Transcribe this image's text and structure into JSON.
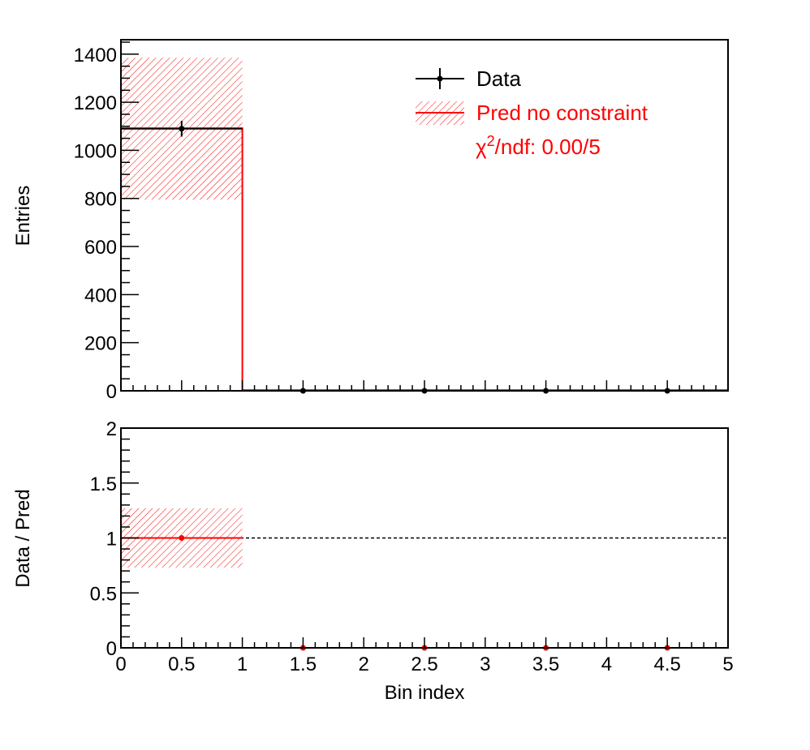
{
  "chart_data": [
    {
      "type": "bar",
      "panel": "top",
      "ylabel": "Entries",
      "xlim": [
        0,
        5
      ],
      "ylim": [
        0,
        1460
      ],
      "yticks": [
        0,
        200,
        400,
        600,
        800,
        1000,
        1200,
        1400
      ],
      "bin_edges": [
        0,
        1,
        2,
        3,
        4,
        5
      ],
      "series": [
        {
          "name": "Data",
          "style": "points-with-errors",
          "x": [
            0.5,
            1.5,
            2.5,
            3.5,
            4.5
          ],
          "values": [
            1090,
            0,
            0,
            0,
            0
          ],
          "errors": [
            33,
            0,
            0,
            0,
            0
          ],
          "color": "#000000"
        },
        {
          "name": "Pred no constraint",
          "style": "histogram-with-hatched-band",
          "values": [
            1092,
            3,
            3,
            3,
            3
          ],
          "band_low": [
            795,
            0,
            0,
            0,
            0
          ],
          "band_high": [
            1385,
            0,
            0,
            0,
            0
          ],
          "color": "#ff0000"
        }
      ],
      "legend": {
        "placement": "top-right",
        "entries": [
          "Data",
          "Pred no constraint"
        ],
        "chi2_prefix": "χ",
        "chi2_sup": "2",
        "chi2_text": "/ndf: 0.00/5"
      }
    },
    {
      "type": "scatter",
      "panel": "bottom",
      "xlabel": "Bin index",
      "ylabel": "Data / Pred",
      "xlim": [
        0,
        5
      ],
      "ylim": [
        0,
        2
      ],
      "xticks": [
        "0",
        "0.5",
        "1",
        "1.5",
        "2",
        "2.5",
        "3",
        "3.5",
        "4",
        "4.5",
        "5"
      ],
      "yticks": [
        "0",
        "0.5",
        "1",
        "1.5",
        "2"
      ],
      "x": [
        0.5,
        1.5,
        2.5,
        3.5,
        4.5
      ],
      "ratio": [
        1.0,
        0,
        0,
        0,
        0
      ],
      "band": {
        "x0": 0,
        "x1": 1,
        "low": 0.73,
        "high": 1.27,
        "center": 1.0
      },
      "reference_line": 1.0,
      "color": "#ff0000"
    }
  ]
}
